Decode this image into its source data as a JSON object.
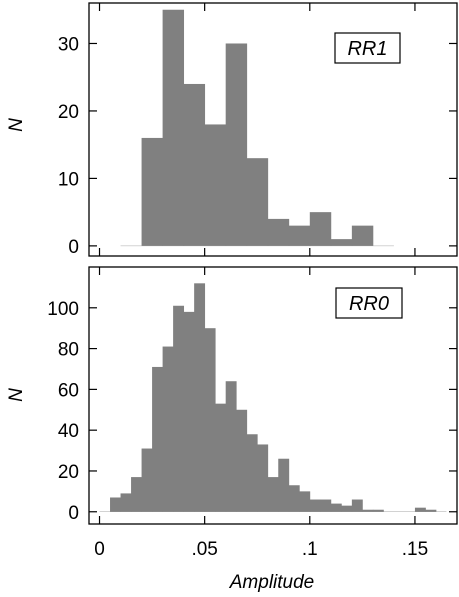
{
  "chart_data": [
    {
      "type": "bar",
      "panel_label": "RR1",
      "ylabel": "N",
      "xlabel": "",
      "bar_color": "#808080",
      "xlim": [
        -0.005,
        0.17
      ],
      "ylim": [
        -1.5,
        36
      ],
      "yticks": [
        0,
        10,
        20,
        30
      ],
      "ytick_labels": [
        "0",
        "10",
        "20",
        "30"
      ],
      "xticks": [
        0,
        0.05,
        0.1,
        0.15
      ],
      "bin_width": 0.01,
      "bins": [
        {
          "x0": 0.02,
          "value": 16
        },
        {
          "x0": 0.03,
          "value": 35
        },
        {
          "x0": 0.04,
          "value": 24
        },
        {
          "x0": 0.05,
          "value": 18
        },
        {
          "x0": 0.06,
          "value": 30
        },
        {
          "x0": 0.07,
          "value": 13
        },
        {
          "x0": 0.08,
          "value": 4
        },
        {
          "x0": 0.09,
          "value": 3
        },
        {
          "x0": 0.1,
          "value": 5
        },
        {
          "x0": 0.11,
          "value": 1
        },
        {
          "x0": 0.12,
          "value": 3
        }
      ],
      "baseline_range": [
        0.01,
        0.14
      ]
    },
    {
      "type": "bar",
      "panel_label": "RR0",
      "ylabel": "N",
      "xlabel": "Amplitude",
      "bar_color": "#808080",
      "xlim": [
        -0.005,
        0.17
      ],
      "ylim": [
        -6,
        120
      ],
      "yticks": [
        0,
        20,
        40,
        60,
        80,
        100
      ],
      "ytick_labels": [
        "0",
        "20",
        "40",
        "60",
        "80",
        "100"
      ],
      "xticks": [
        0,
        0.05,
        0.1,
        0.15
      ],
      "xtick_labels": [
        "0",
        ".05",
        ".1",
        ".15"
      ],
      "bin_width": 0.005,
      "bins": [
        {
          "x0": 0.005,
          "value": 7
        },
        {
          "x0": 0.01,
          "value": 9
        },
        {
          "x0": 0.015,
          "value": 17
        },
        {
          "x0": 0.02,
          "value": 31
        },
        {
          "x0": 0.025,
          "value": 71
        },
        {
          "x0": 0.03,
          "value": 81
        },
        {
          "x0": 0.035,
          "value": 101
        },
        {
          "x0": 0.04,
          "value": 98
        },
        {
          "x0": 0.045,
          "value": 112
        },
        {
          "x0": 0.05,
          "value": 90
        },
        {
          "x0": 0.055,
          "value": 53
        },
        {
          "x0": 0.06,
          "value": 64
        },
        {
          "x0": 0.065,
          "value": 50
        },
        {
          "x0": 0.07,
          "value": 38
        },
        {
          "x0": 0.075,
          "value": 33
        },
        {
          "x0": 0.08,
          "value": 17
        },
        {
          "x0": 0.085,
          "value": 26
        },
        {
          "x0": 0.09,
          "value": 13
        },
        {
          "x0": 0.095,
          "value": 10
        },
        {
          "x0": 0.1,
          "value": 6
        },
        {
          "x0": 0.105,
          "value": 6
        },
        {
          "x0": 0.11,
          "value": 4
        },
        {
          "x0": 0.115,
          "value": 3
        },
        {
          "x0": 0.12,
          "value": 6
        },
        {
          "x0": 0.125,
          "value": 1
        },
        {
          "x0": 0.13,
          "value": 1
        },
        {
          "x0": 0.135,
          "value": 0
        },
        {
          "x0": 0.14,
          "value": 0
        },
        {
          "x0": 0.145,
          "value": 0
        },
        {
          "x0": 0.15,
          "value": 2
        },
        {
          "x0": 0.155,
          "value": 1
        }
      ],
      "baseline_range": [
        0.0,
        0.165
      ]
    }
  ]
}
